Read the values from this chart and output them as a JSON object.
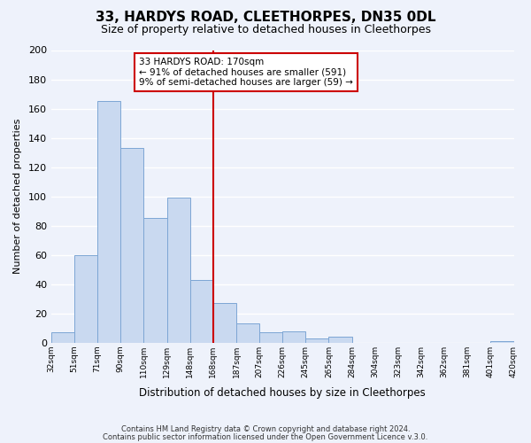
{
  "title": "33, HARDYS ROAD, CLEETHORPES, DN35 0DL",
  "subtitle": "Size of property relative to detached houses in Cleethorpes",
  "xlabel": "Distribution of detached houses by size in Cleethorpes",
  "ylabel": "Number of detached properties",
  "bin_labels": [
    "32sqm",
    "51sqm",
    "71sqm",
    "90sqm",
    "110sqm",
    "129sqm",
    "148sqm",
    "168sqm",
    "187sqm",
    "207sqm",
    "226sqm",
    "245sqm",
    "265sqm",
    "284sqm",
    "304sqm",
    "323sqm",
    "342sqm",
    "362sqm",
    "381sqm",
    "401sqm",
    "420sqm"
  ],
  "bar_values": [
    7,
    60,
    165,
    133,
    85,
    99,
    43,
    27,
    13,
    7,
    8,
    3,
    4,
    0,
    0,
    0,
    0,
    0,
    0,
    1
  ],
  "bar_color": "#c9d9f0",
  "bar_edge_color": "#7da6d4",
  "vline_x": 7,
  "vline_color": "#cc0000",
  "ylim": [
    0,
    200
  ],
  "yticks": [
    0,
    20,
    40,
    60,
    80,
    100,
    120,
    140,
    160,
    180,
    200
  ],
  "annotation_title": "33 HARDYS ROAD: 170sqm",
  "annotation_line1": "← 91% of detached houses are smaller (591)",
  "annotation_line2": "9% of semi-detached houses are larger (59) →",
  "annotation_box_color": "#ffffff",
  "annotation_box_edge": "#cc0000",
  "footer_line1": "Contains HM Land Registry data © Crown copyright and database right 2024.",
  "footer_line2": "Contains public sector information licensed under the Open Government Licence v.3.0.",
  "background_color": "#eef2fb"
}
